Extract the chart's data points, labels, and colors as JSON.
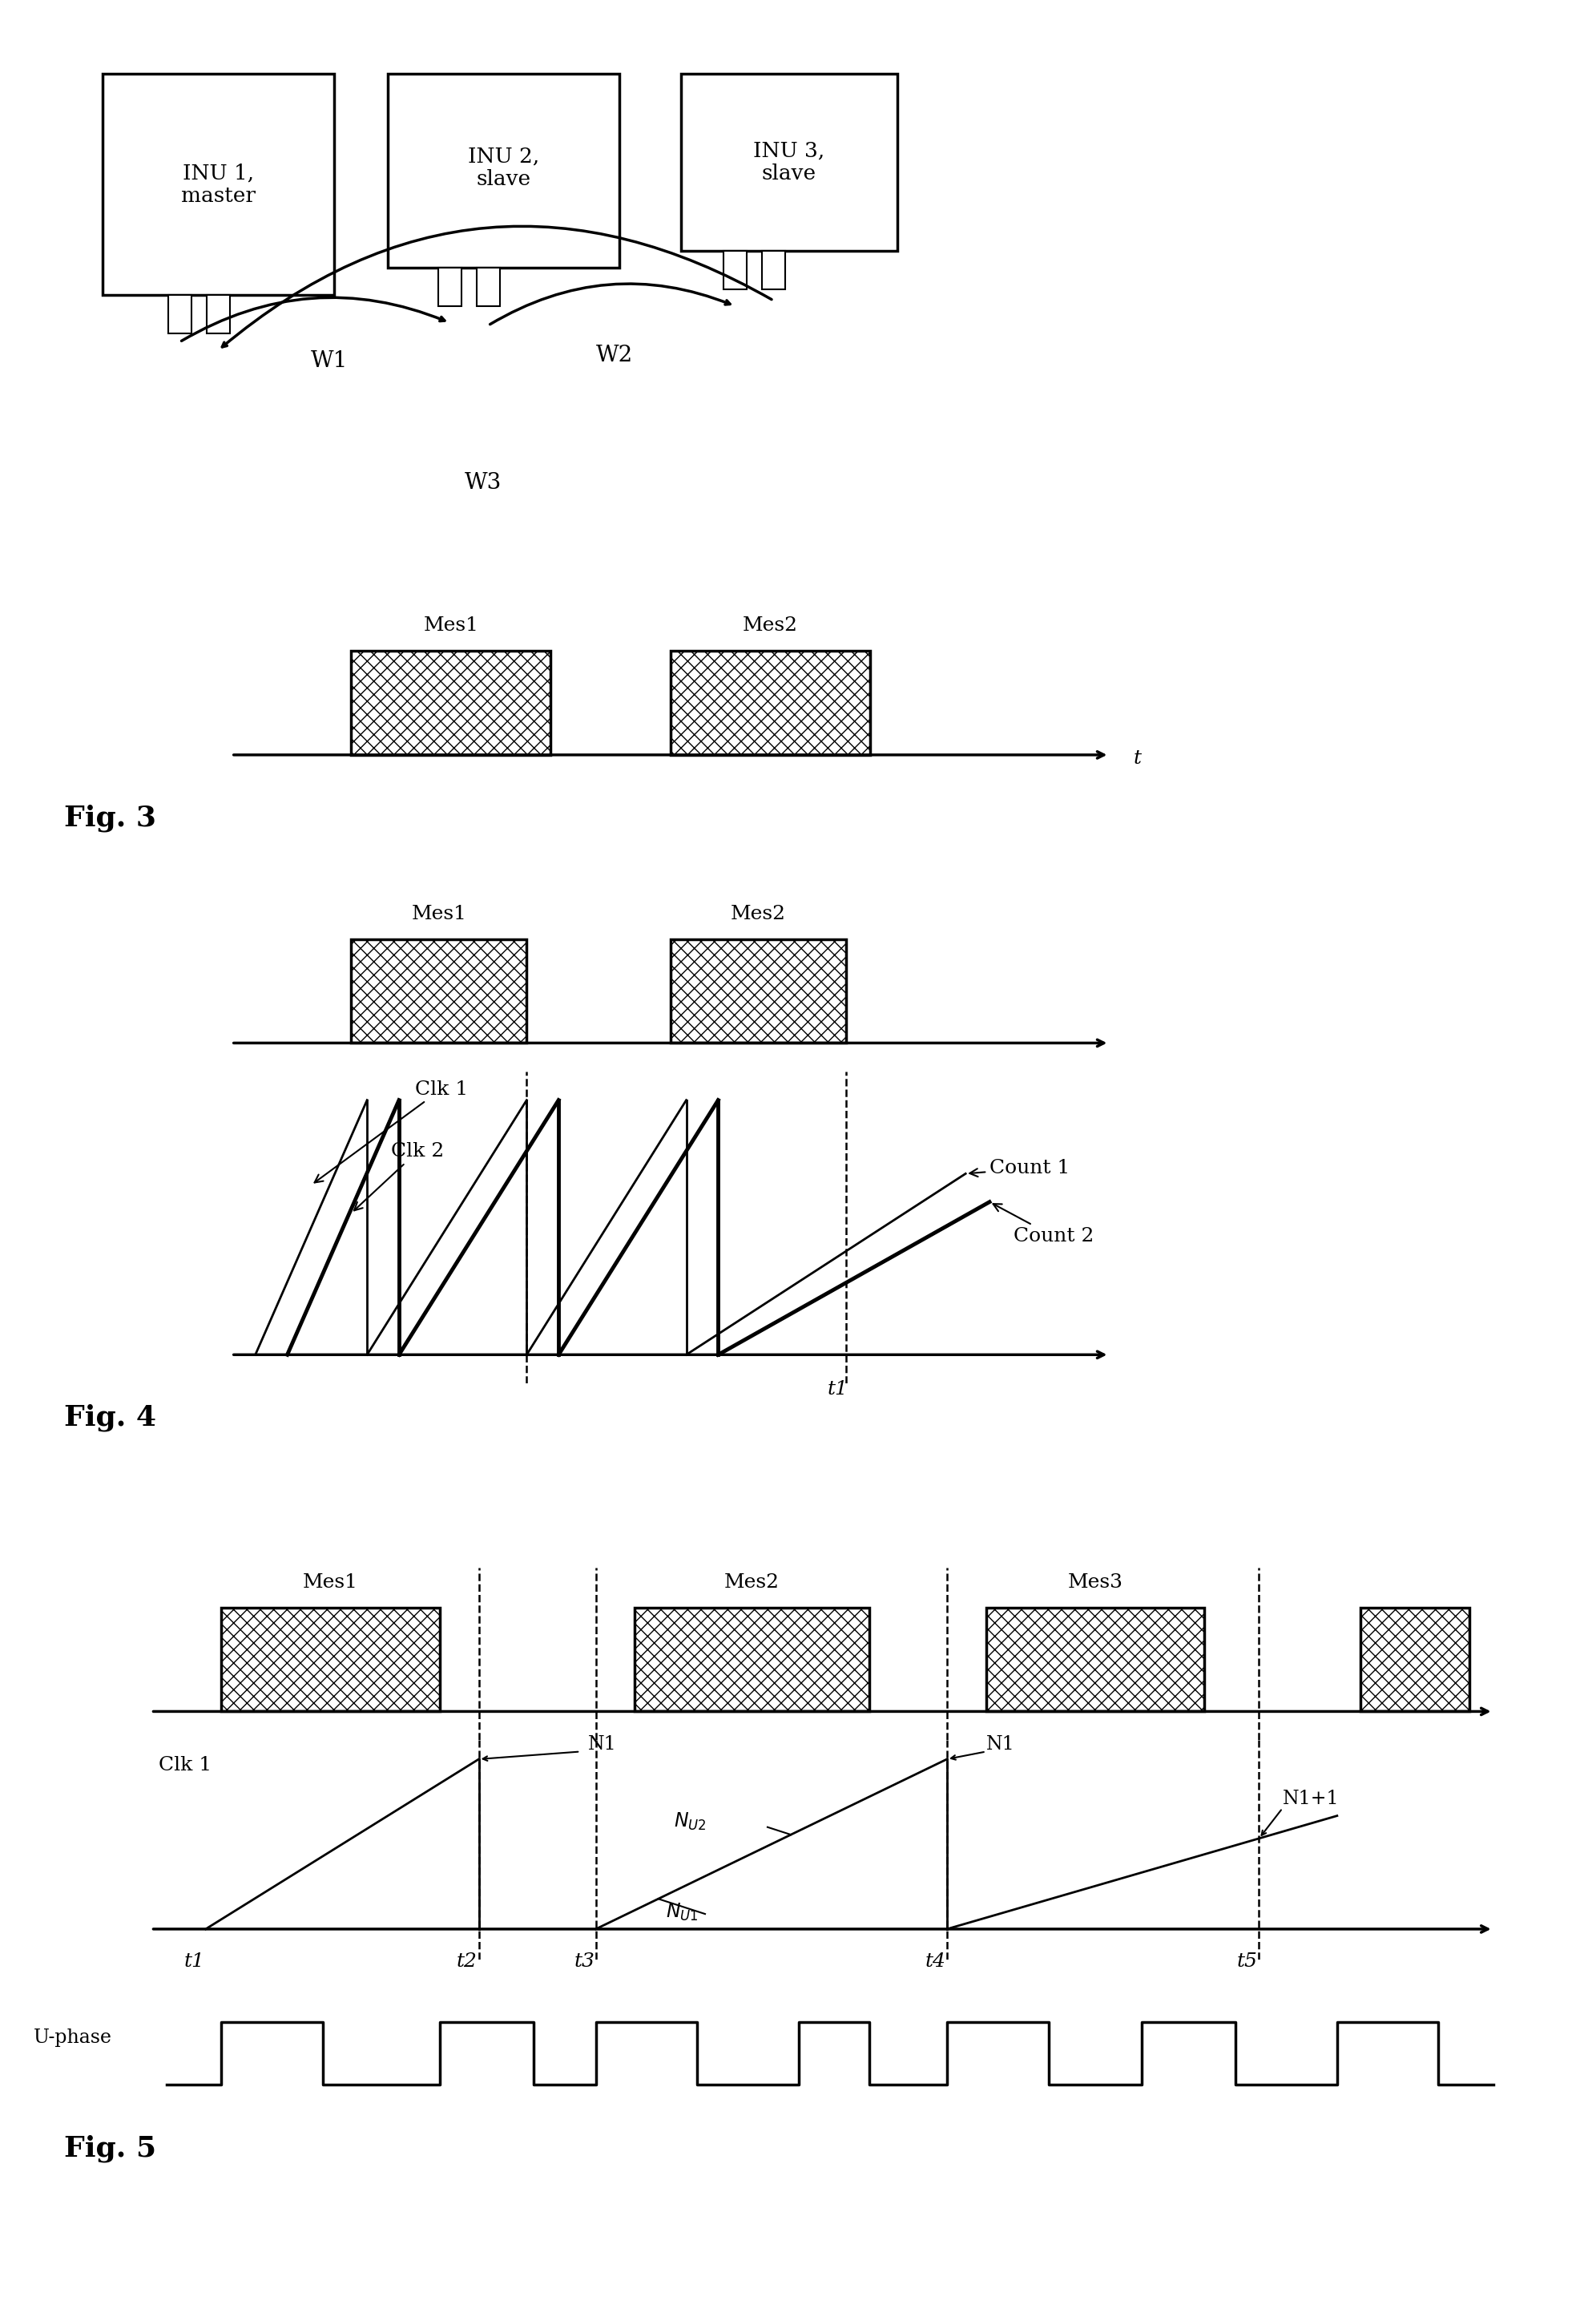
{
  "fig_width": 19.92,
  "fig_height": 28.76,
  "bg_color": "#ffffff",
  "fig3_label": "Fig. 3",
  "fig4_label": "Fig. 4",
  "fig5_label": "Fig. 5",
  "inu1_label": "INU 1,\nmaster",
  "inu2_label": "INU 2,\nslave",
  "inu3_label": "INU 3,\nslave",
  "fontsize": 18,
  "fontsize_fig": 26,
  "lw": 2.5
}
